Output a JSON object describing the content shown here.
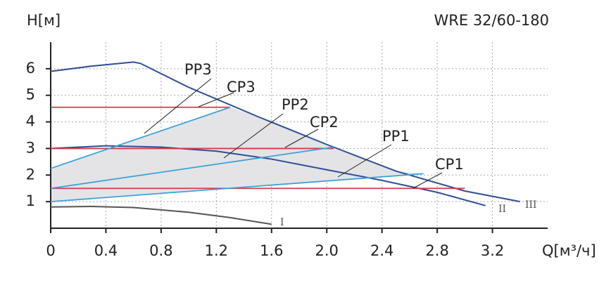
{
  "chart_data": {
    "type": "line",
    "title": "WRE 32/60-180",
    "y_label": "H[м]",
    "x_label": "Q[м³/ч]",
    "xlim": [
      0,
      3.6
    ],
    "ylim": [
      0,
      7
    ],
    "xticks": [
      0,
      0.4,
      0.8,
      1.2,
      1.6,
      {
        "value": 2,
        "label": "2.0"
      },
      2.4,
      2.8,
      3.2
    ],
    "yticks": [
      1,
      2,
      3,
      4,
      5,
      6
    ],
    "grid": true,
    "series": [
      {
        "name": "III",
        "color": "#2e4f95",
        "x": [
          0,
          0.3,
          0.6,
          0.65,
          1.0,
          1.5,
          2.0,
          2.5,
          3.0,
          3.4
        ],
        "values": [
          5.9,
          6.1,
          6.25,
          6.2,
          5.3,
          4.2,
          3.15,
          2.15,
          1.4,
          1.0
        ]
      },
      {
        "name": "II",
        "color": "#2e4f95",
        "x": [
          0,
          0.4,
          0.8,
          1.2,
          1.6,
          2.0,
          2.4,
          2.8,
          3.15
        ],
        "values": [
          3.0,
          3.1,
          3.05,
          2.9,
          2.6,
          2.2,
          1.8,
          1.35,
          0.85
        ]
      },
      {
        "name": "I",
        "color": "#555555",
        "x": [
          0,
          0.3,
          0.6,
          1.0,
          1.3,
          1.6
        ],
        "values": [
          0.8,
          0.82,
          0.78,
          0.6,
          0.4,
          0.15
        ]
      },
      {
        "name": "CP3",
        "color": "#d9394a",
        "x": [
          0,
          1.3
        ],
        "values": [
          4.55,
          4.55
        ]
      },
      {
        "name": "CP2",
        "color": "#d9394a",
        "x": [
          0,
          2.05
        ],
        "values": [
          3.0,
          3.0
        ]
      },
      {
        "name": "CP1",
        "color": "#d9394a",
        "x": [
          0,
          3.0
        ],
        "values": [
          1.5,
          1.5
        ]
      },
      {
        "name": "PP3",
        "color": "#3aa3d8",
        "x": [
          0,
          1.3
        ],
        "values": [
          2.25,
          4.55
        ]
      },
      {
        "name": "PP2",
        "color": "#3aa3d8",
        "x": [
          0,
          2.05
        ],
        "values": [
          1.5,
          3.05
        ]
      },
      {
        "name": "PP1",
        "color": "#3aa3d8",
        "x": [
          0,
          2.7
        ],
        "values": [
          1.0,
          2.05
        ]
      }
    ]
  }
}
